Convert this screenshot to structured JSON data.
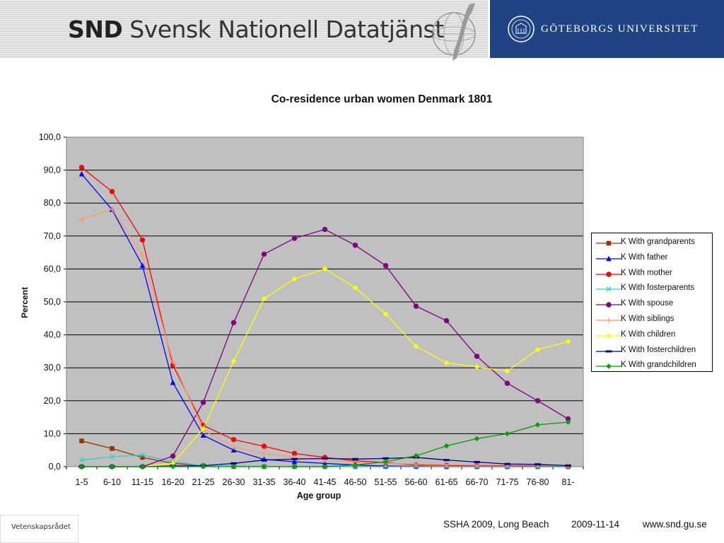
{
  "header": {
    "snd_abbr": "SND",
    "snd_name": "Svensk Nationell Datatjänst",
    "university": "GÖTEBORGS UNIVERSITET",
    "colors": {
      "university_bg": "#1f4384",
      "stripe_light": "#e9e9e9",
      "stripe_dark": "#cfcfcf"
    }
  },
  "footer": {
    "logo_text": "Vetenskapsrådet",
    "conference": "SSHA 2009, Long Beach",
    "date": "2009-11-14",
    "url": "www.snd.gu.se"
  },
  "chart_data": {
    "type": "line",
    "title": "Co-residence urban women Denmark 1801",
    "xlabel": "Age group",
    "ylabel": "Percent",
    "ylim": [
      0,
      100
    ],
    "yticks": [
      "0,0",
      "10,0",
      "20,0",
      "30,0",
      "40,0",
      "50,0",
      "60,0",
      "70,0",
      "80,0",
      "90,0",
      "100,0"
    ],
    "grid": true,
    "legend_position": "right",
    "plot_background": "#c0c0c0",
    "categories": [
      "1-5",
      "6-10",
      "11-15",
      "16-20",
      "21-25",
      "26-30",
      "31-35",
      "36-40",
      "41-45",
      "46-50",
      "51-55",
      "56-60",
      "61-65",
      "66-70",
      "71-75",
      "76-80",
      "81-"
    ],
    "series": [
      {
        "name": "K With grandparents",
        "color": "#993300",
        "marker": "square",
        "values": [
          7.8,
          5.5,
          2.8,
          1.0,
          0.3,
          0.0,
          0.0,
          0.0,
          0.0,
          0.0,
          0.0,
          0.0,
          0.0,
          0.0,
          0.0,
          0.0,
          0.0
        ]
      },
      {
        "name": "K With father",
        "color": "#0000ff",
        "marker": "triangle",
        "values": [
          88.8,
          78.0,
          61.0,
          25.5,
          9.5,
          5.0,
          2.2,
          1.5,
          1.0,
          0.5,
          0.2,
          0.1,
          0.0,
          0.0,
          0.0,
          0.0,
          0.0
        ]
      },
      {
        "name": "K With mother",
        "color": "#ff0000",
        "marker": "circle",
        "values": [
          90.8,
          83.5,
          68.8,
          30.8,
          12.5,
          8.2,
          6.2,
          4.0,
          2.8,
          1.8,
          1.2,
          0.5,
          0.4,
          0.3,
          0.3,
          0.2,
          0.0
        ]
      },
      {
        "name": "K With fosterparents",
        "color": "#33cccc",
        "marker": "x",
        "values": [
          2.0,
          3.0,
          3.5,
          1.5,
          0.3,
          0.2,
          0.1,
          0.0,
          0.0,
          0.0,
          0.0,
          0.0,
          0.0,
          0.0,
          0.0,
          0.0,
          0.0
        ]
      },
      {
        "name": "K With spouse",
        "color": "#800080",
        "marker": "circle",
        "values": [
          0.0,
          0.0,
          0.0,
          3.2,
          19.5,
          43.7,
          64.5,
          69.3,
          72.0,
          67.2,
          61.0,
          48.7,
          44.3,
          33.5,
          25.3,
          20.0,
          14.5
        ]
      },
      {
        "name": "K With siblings",
        "color": "#ff9966",
        "marker": "plus",
        "values": [
          75.0,
          78.2,
          64.0,
          32.0,
          11.0,
          6.0,
          4.0,
          2.8,
          2.0,
          1.5,
          1.0,
          0.8,
          0.6,
          0.5,
          0.5,
          0.5,
          0.5
        ]
      },
      {
        "name": "K With children",
        "color": "#ffff00",
        "marker": "diamond",
        "values": [
          0.0,
          0.0,
          0.0,
          1.0,
          11.5,
          32.0,
          51.0,
          57.0,
          60.0,
          54.3,
          46.3,
          36.5,
          31.5,
          30.3,
          29.0,
          35.5,
          38.0
        ]
      },
      {
        "name": "K With fosterchildren",
        "color": "#000080",
        "marker": "dash",
        "values": [
          0.0,
          0.0,
          0.0,
          0.2,
          0.3,
          1.0,
          2.0,
          2.3,
          2.5,
          2.3,
          2.5,
          2.8,
          2.0,
          1.4,
          0.8,
          0.7,
          0.3
        ]
      },
      {
        "name": "K With grandchildren",
        "color": "#00a000",
        "marker": "diamond",
        "values": [
          0.0,
          0.0,
          0.0,
          0.0,
          0.0,
          0.0,
          0.0,
          0.0,
          0.0,
          0.5,
          1.5,
          3.3,
          6.3,
          8.5,
          10.0,
          12.7,
          13.5
        ]
      }
    ]
  }
}
